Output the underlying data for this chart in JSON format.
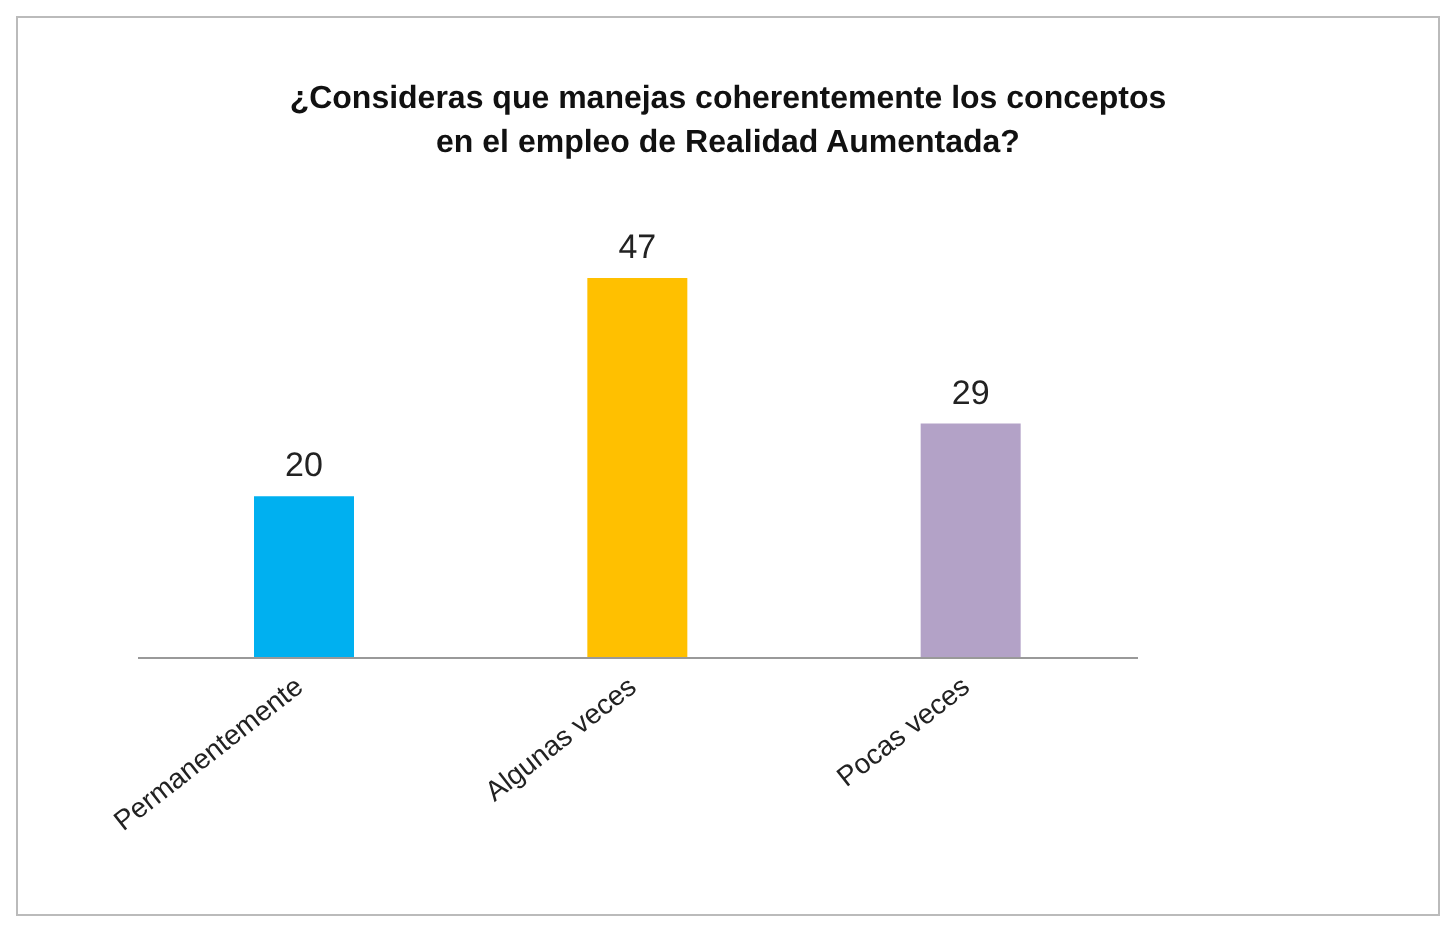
{
  "chart_data": {
    "type": "bar",
    "title": "¿Consideras que manejas coherentemente los conceptos en el empleo de Realidad Aumentada?",
    "categories": [
      "Permanentemente",
      "Algunas veces",
      "Pocas veces"
    ],
    "values": [
      20,
      47,
      29
    ],
    "colors": [
      "#00b0f0",
      "#ffc000",
      "#b3a2c7"
    ],
    "data_labels": true
  }
}
